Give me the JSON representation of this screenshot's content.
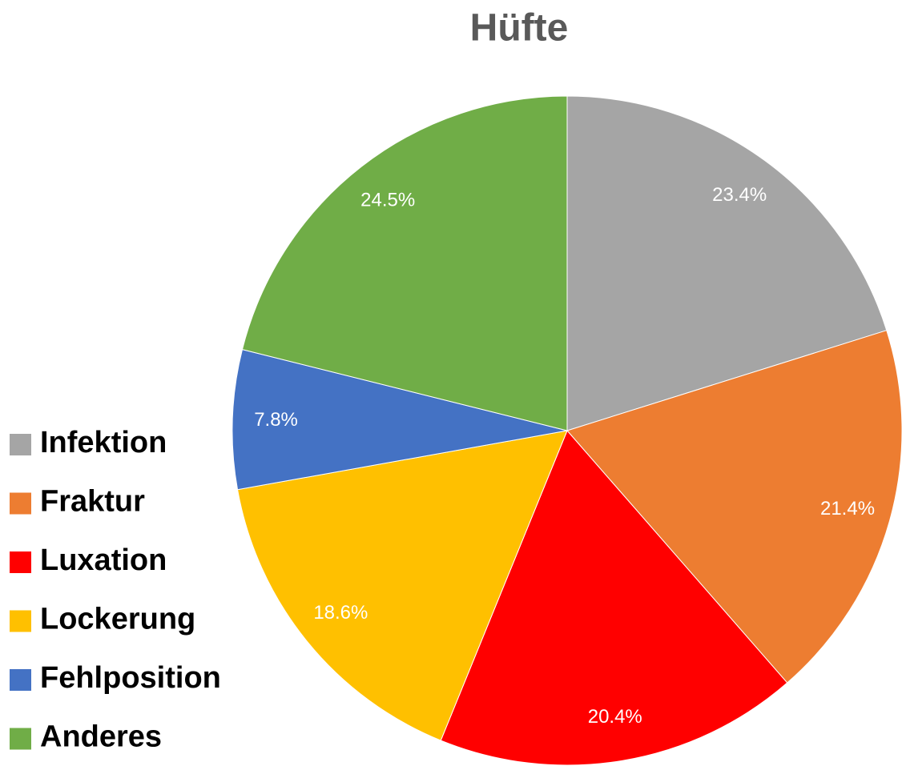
{
  "chart_data": {
    "type": "pie",
    "title": "Hüfte",
    "categories": [
      "Infektion",
      "Fraktur",
      "Luxation",
      "Lockerung",
      "Fehlposition",
      "Anderes"
    ],
    "values": [
      23.4,
      21.4,
      20.4,
      18.6,
      7.8,
      24.5
    ],
    "value_labels": [
      "23.4%",
      "21.4%",
      "20.4%",
      "18.6%",
      "7.8%",
      "24.5%"
    ],
    "colors": [
      "#a5a5a5",
      "#ed7d31",
      "#ff0000",
      "#ffc000",
      "#4472c4",
      "#70ad47"
    ],
    "legend": "left"
  }
}
